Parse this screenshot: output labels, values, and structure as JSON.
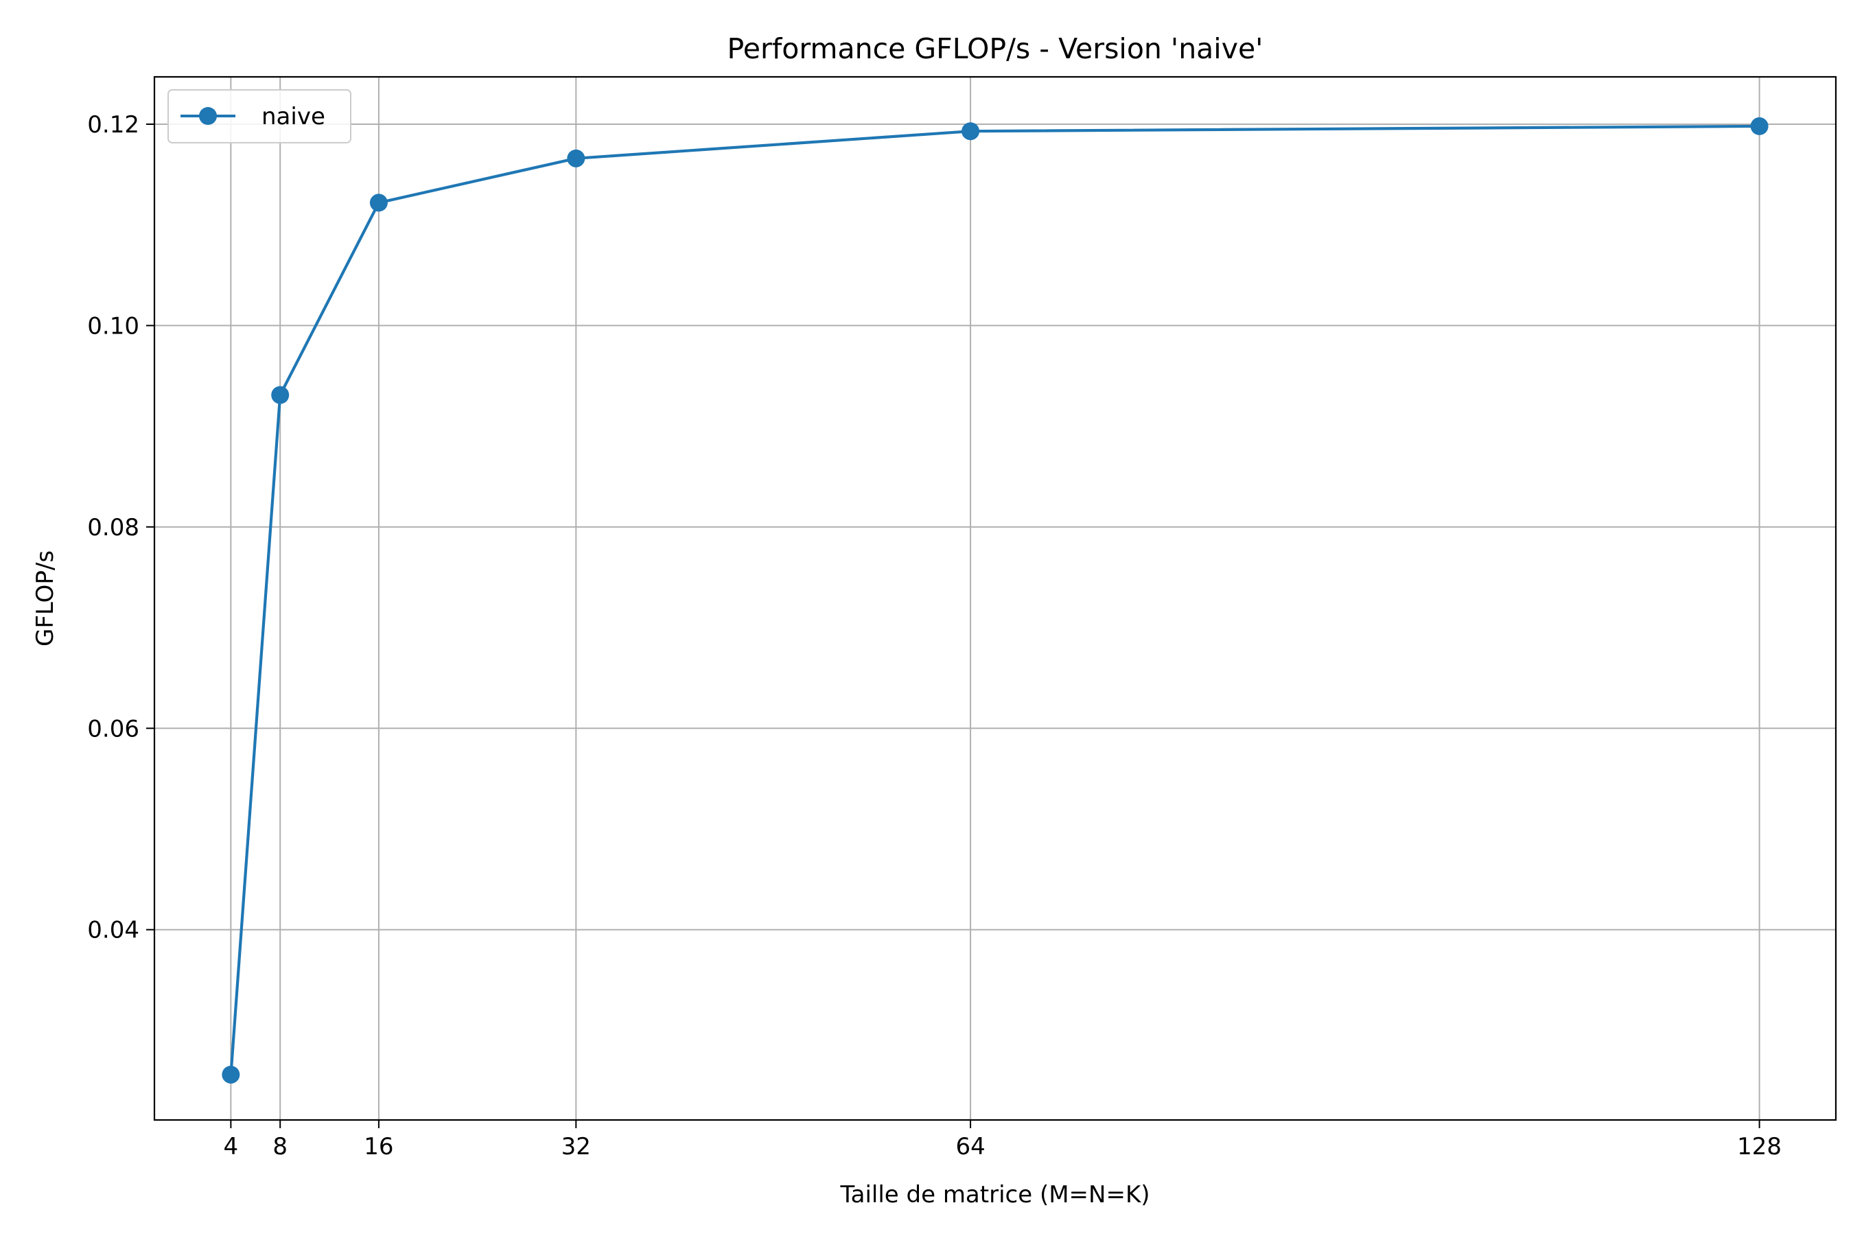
{
  "chart_data": {
    "type": "line",
    "title": "Performance GFLOP/s - Version 'naive'",
    "xlabel": "Taille de matrice (M=N=K)",
    "ylabel": "GFLOP/s",
    "x": [
      4,
      8,
      16,
      32,
      64,
      128
    ],
    "xticks": [
      "4",
      "8",
      "16",
      "32",
      "64",
      "128"
    ],
    "yticks": [
      "0.04",
      "0.06",
      "0.08",
      "0.10",
      "0.12"
    ],
    "ytick_values": [
      0.04,
      0.06,
      0.08,
      0.1,
      0.12
    ],
    "xlim": [
      -2.2,
      134.2
    ],
    "ylim": [
      0.0211,
      0.1247
    ],
    "grid": true,
    "legend_position": "upper-left",
    "series": [
      {
        "name": "naive",
        "color": "#1f77b4",
        "marker": "circle",
        "values": [
          0.0256,
          0.0931,
          0.1122,
          0.1166,
          0.1193,
          0.1198
        ]
      }
    ]
  }
}
